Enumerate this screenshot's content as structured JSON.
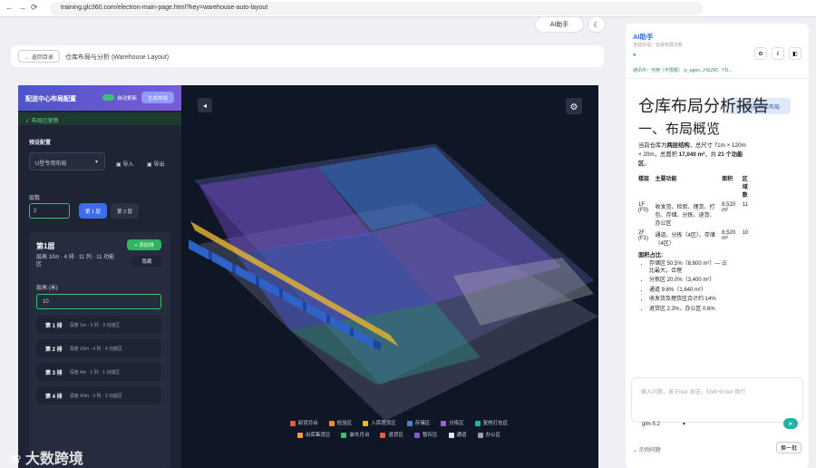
{
  "browser": {
    "url": "training.glc360.com/electron-main-page.html?key=warehouse-auto-layout"
  },
  "toolbar": {
    "ai_button": "AI助手"
  },
  "breadcrumb": {
    "back": "← 返回目录",
    "title": "仓库布局与分析 (Warehouse Layout)"
  },
  "config_panel": {
    "title": "配送中心布局配置",
    "auto_update": "自动更新",
    "generate": "生成布局",
    "status": "✓ 布局已更新",
    "preset_label": "预设配置",
    "preset": "U型专用布局",
    "import": "导入",
    "export": "导出",
    "floors_label": "层数",
    "floors_value": "2",
    "floor_tabs": [
      "第 1 层",
      "第 2 层"
    ],
    "floor": {
      "title": "第1层",
      "summary": "层高 10m · 4 排 · 11 列 · 11 功能区",
      "add_row": "+ 添加排",
      "hide": "隐藏",
      "height_label": "层高 (米)",
      "height_value": "10",
      "rows": [
        {
          "name": "第 1 排",
          "detail": "深度 1m · 3 列 · 3 功能区"
        },
        {
          "name": "第 2 排",
          "detail": "深度 20m · 4 列 · 4 功能区"
        },
        {
          "name": "第 3 排",
          "detail": "深度 4m · 1 列 · 1 功能区"
        },
        {
          "name": "第 4 排",
          "detail": "深度 40m · 3 列 · 3 功能区"
        }
      ]
    }
  },
  "legend": [
    {
      "label": "卸货月台",
      "color": "#e05a47"
    },
    {
      "label": "检验区",
      "color": "#f08a24"
    },
    {
      "label": "入库理货区",
      "color": "#e8b730"
    },
    {
      "label": "存储区",
      "color": "#4a7fd6"
    },
    {
      "label": "分拣区",
      "color": "#8e63d9"
    },
    {
      "label": "复核打包区",
      "color": "#1fb5a5"
    },
    {
      "label": "出库集货区",
      "color": "#f29b38"
    },
    {
      "label": "装车月台",
      "color": "#3cc06c"
    },
    {
      "label": "退货区",
      "color": "#e0603a"
    },
    {
      "label": "暂存区",
      "color": "#7d5bd0"
    },
    {
      "label": "通道",
      "color": "#e6e6e6"
    },
    {
      "label": "办公区",
      "color": "#9aa0a8"
    }
  ],
  "assistant": {
    "title": "AI助手",
    "session": "当前对话：仓库布局分析",
    "status": "通讯中：可用（不限额） ly_agen...HGZR) · YD...",
    "prompt_chip": "分析当前仓库布局",
    "report_title": "仓库布局分析报告",
    "section": "一、布局概览",
    "intro": [
      "当前仓库为",
      "两层结构",
      "，总尺寸 71m × 120m × 20m，总面积 ",
      "17,040 m²",
      "，共 ",
      "21 个功能区",
      "。"
    ],
    "table": {
      "headers": [
        "楼层",
        "主要功能",
        "面积",
        "区域数"
      ],
      "rows": [
        [
          "1F (F0)",
          "收发货、检验、理货、打包、存储、分拣、退货、办公区",
          "8,520 m²",
          "11"
        ],
        [
          "2F (F1)",
          "通道、分拣（4区）、存储（4区）",
          "8,520 m²",
          "10"
        ]
      ]
    },
    "share_title": "面积占比:",
    "bullets": [
      "存储区 50.5%（8,600 m²）— 占比最大，合理",
      "分拣区 20.0%（3,400 m²）",
      "通道 9.6%（1,640 m²）",
      "收发货及理货区合计约 14%",
      "退货区 2.3%，办公区 0.6%"
    ],
    "input_placeholder": "输入问题，按 Enter 发送，Shift+Enter 换行",
    "model": "glm-5.2",
    "examples": "示例问题",
    "refresh": "换一批"
  },
  "watermark": "大数跨境"
}
